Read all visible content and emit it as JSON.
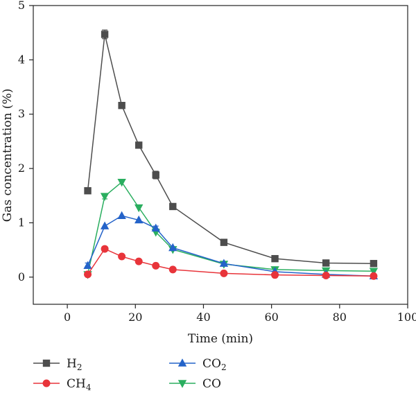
{
  "chart_data": {
    "type": "line",
    "xlabel": "Time (min)",
    "ylabel": "Gas concentration (%)",
    "xlim": [
      -10,
      100
    ],
    "ylim": [
      -0.5,
      5
    ],
    "xticks": [
      0,
      20,
      40,
      60,
      80,
      100
    ],
    "yticks": [
      0,
      1,
      2,
      3,
      4,
      5
    ],
    "grid": false,
    "legend_position": "bottom",
    "x": [
      6,
      11,
      16,
      21,
      26,
      31,
      46,
      61,
      76,
      90
    ],
    "series": [
      {
        "name": "H2",
        "legend_main": "H",
        "legend_sub": "2",
        "color": "#4d4d4d",
        "marker": "square",
        "values": [
          1.59,
          4.47,
          3.16,
          2.43,
          1.88,
          1.3,
          0.64,
          0.34,
          0.26,
          0.25
        ],
        "errors": [
          0,
          0.08,
          0,
          0,
          0.07,
          0,
          0,
          0,
          0,
          0
        ]
      },
      {
        "name": "CH4",
        "legend_main": "CH",
        "legend_sub": "4",
        "color": "#e8343a",
        "marker": "circle",
        "values": [
          0.05,
          0.52,
          0.38,
          0.29,
          0.21,
          0.14,
          0.07,
          0.04,
          0.03,
          0.02
        ],
        "errors": [
          0,
          0,
          0,
          0,
          0,
          0,
          0,
          0,
          0,
          0
        ]
      },
      {
        "name": "CO2",
        "legend_main": "CO",
        "legend_sub": "2",
        "color": "#2463c9",
        "marker": "triangle-up",
        "values": [
          0.21,
          0.94,
          1.13,
          1.05,
          0.9,
          0.54,
          0.25,
          0.1,
          0.05,
          0.02
        ],
        "errors": [
          0.05,
          0,
          0,
          0,
          0.04,
          0,
          0,
          0,
          0,
          0
        ]
      },
      {
        "name": "CO",
        "legend_main": "CO",
        "legend_sub": "",
        "color": "#2aae5f",
        "marker": "triangle-down",
        "values": [
          0.05,
          1.49,
          1.75,
          1.28,
          0.83,
          0.51,
          0.24,
          0.14,
          0.12,
          0.11
        ],
        "errors": [
          0,
          0.05,
          0,
          0,
          0,
          0,
          0,
          0,
          0,
          0
        ]
      }
    ]
  }
}
